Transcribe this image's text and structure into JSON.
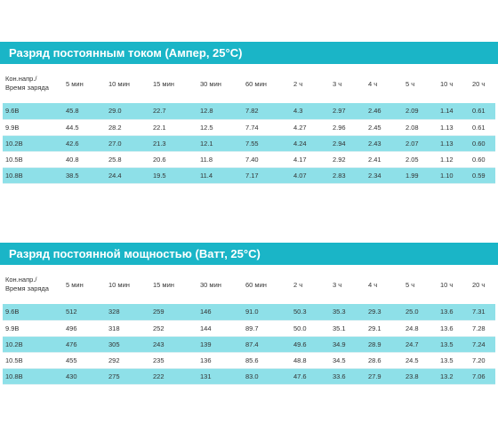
{
  "tables": [
    {
      "title": "Разряд постоянным током (Ампер, 25°С)",
      "header_line1": "Кон.напр./",
      "header_line2": "Время заряда",
      "columns": [
        "5 мин",
        "10 мин",
        "15 мин",
        "30 мин",
        "60 мин",
        "2 ч",
        "3 ч",
        "4 ч",
        "5 ч",
        "10 ч",
        "20 ч"
      ],
      "rows": [
        {
          "label": "9.6В",
          "values": [
            "45.8",
            "29.0",
            "22.7",
            "12.8",
            "7.82",
            "4.3",
            "2.97",
            "2.46",
            "2.09",
            "1.14",
            "0.61"
          ]
        },
        {
          "label": "9.9В",
          "values": [
            "44.5",
            "28.2",
            "22.1",
            "12.5",
            "7.74",
            "4.27",
            "2.96",
            "2.45",
            "2.08",
            "1.13",
            "0.61"
          ]
        },
        {
          "label": "10.2В",
          "values": [
            "42.6",
            "27.0",
            "21.3",
            "12.1",
            "7.55",
            "4.24",
            "2.94",
            "2.43",
            "2.07",
            "1.13",
            "0.60"
          ]
        },
        {
          "label": "10.5В",
          "values": [
            "40.8",
            "25.8",
            "20.6",
            "11.8",
            "7.40",
            "4.17",
            "2.92",
            "2.41",
            "2.05",
            "1.12",
            "0.60"
          ]
        },
        {
          "label": "10.8В",
          "values": [
            "38.5",
            "24.4",
            "19.5",
            "11.4",
            "7.17",
            "4.07",
            "2.83",
            "2.34",
            "1.99",
            "1.10",
            "0.59"
          ]
        }
      ]
    },
    {
      "title": "Разряд постоянной мощностью (Ватт, 25°С)",
      "header_line1": "Кон.напр./",
      "header_line2": "Время заряда",
      "columns": [
        "5 мин",
        "10 мин",
        "15 мин",
        "30 мин",
        "60 мин",
        "2 ч",
        "3 ч",
        "4 ч",
        "5 ч",
        "10 ч",
        "20 ч"
      ],
      "rows": [
        {
          "label": "9.6В",
          "values": [
            "512",
            "328",
            "259",
            "146",
            "91.0",
            "50.3",
            "35.3",
            "29.3",
            "25.0",
            "13.6",
            "7.31"
          ]
        },
        {
          "label": "9.9В",
          "values": [
            "496",
            "318",
            "252",
            "144",
            "89.7",
            "50.0",
            "35.1",
            "29.1",
            "24.8",
            "13.6",
            "7.28"
          ]
        },
        {
          "label": "10.2В",
          "values": [
            "476",
            "305",
            "243",
            "139",
            "87.4",
            "49.6",
            "34.9",
            "28.9",
            "24.7",
            "13.5",
            "7.24"
          ]
        },
        {
          "label": "10.5В",
          "values": [
            "455",
            "292",
            "235",
            "136",
            "85.6",
            "48.8",
            "34.5",
            "28.6",
            "24.5",
            "13.5",
            "7.20"
          ]
        },
        {
          "label": "10.8В",
          "values": [
            "430",
            "275",
            "222",
            "131",
            "83.0",
            "47.6",
            "33.6",
            "27.9",
            "23.8",
            "13.2",
            "7.06"
          ]
        }
      ]
    }
  ],
  "colors": {
    "banner": "#1ab5c7",
    "row_teal": "#8ee0e8",
    "row_white": "#ffffff"
  }
}
